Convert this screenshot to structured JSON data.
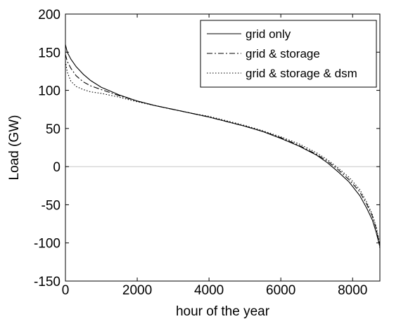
{
  "chart_data": {
    "type": "line",
    "title": "",
    "xlabel": "hour of the year",
    "ylabel": "Load (GW)",
    "xlim": [
      0,
      8760
    ],
    "ylim": [
      -150,
      200
    ],
    "x_ticks": [
      0,
      2000,
      4000,
      6000,
      8000
    ],
    "y_ticks": [
      -150,
      -100,
      -50,
      0,
      50,
      100,
      150,
      200
    ],
    "grid": false,
    "zero_line": true,
    "legend_position": "top-right",
    "series": [
      {
        "name": "grid only",
        "line_style": "solid",
        "color": "#000000",
        "x": [
          0,
          50,
          150,
          300,
          500,
          700,
          1000,
          1500,
          2000,
          2500,
          3000,
          3500,
          4000,
          4500,
          5000,
          5500,
          6000,
          6500,
          7000,
          7300,
          7600,
          7900,
          8200,
          8400,
          8550,
          8650,
          8720,
          8760
        ],
        "y": [
          160,
          150,
          141,
          131,
          121,
          113,
          104,
          94,
          86,
          80,
          75,
          70,
          65,
          59,
          53,
          46,
          37,
          27,
          15,
          5,
          -7,
          -20,
          -38,
          -55,
          -70,
          -85,
          -98,
          -105
        ]
      },
      {
        "name": "grid & storage",
        "line_style": "dashdot",
        "color": "#000000",
        "x": [
          0,
          50,
          150,
          300,
          500,
          700,
          1000,
          1500,
          2000,
          2500,
          3000,
          3500,
          4000,
          4500,
          5000,
          5500,
          6000,
          6500,
          7000,
          7300,
          7600,
          7900,
          8200,
          8400,
          8550,
          8650,
          8720,
          8760
        ],
        "y": [
          147,
          138,
          129,
          119,
          111,
          106,
          101,
          93,
          86,
          80,
          75,
          70,
          65,
          59,
          53,
          46,
          38,
          28,
          16,
          7,
          -4,
          -17,
          -33,
          -50,
          -65,
          -80,
          -95,
          -103
        ]
      },
      {
        "name": "grid & storage & dsm",
        "line_style": "dotted",
        "color": "#000000",
        "x": [
          0,
          50,
          150,
          300,
          500,
          700,
          1000,
          1500,
          2000,
          2500,
          3000,
          3500,
          4000,
          4500,
          5000,
          5500,
          6000,
          6500,
          7000,
          7300,
          7600,
          7900,
          8200,
          8400,
          8550,
          8650,
          8720,
          8760
        ],
        "y": [
          138,
          124,
          112,
          105,
          101,
          98,
          96,
          91,
          85,
          80,
          75,
          70,
          66,
          60,
          54,
          47,
          39,
          30,
          18,
          9,
          -2,
          -14,
          -30,
          -47,
          -63,
          -78,
          -93,
          -108
        ]
      }
    ]
  }
}
